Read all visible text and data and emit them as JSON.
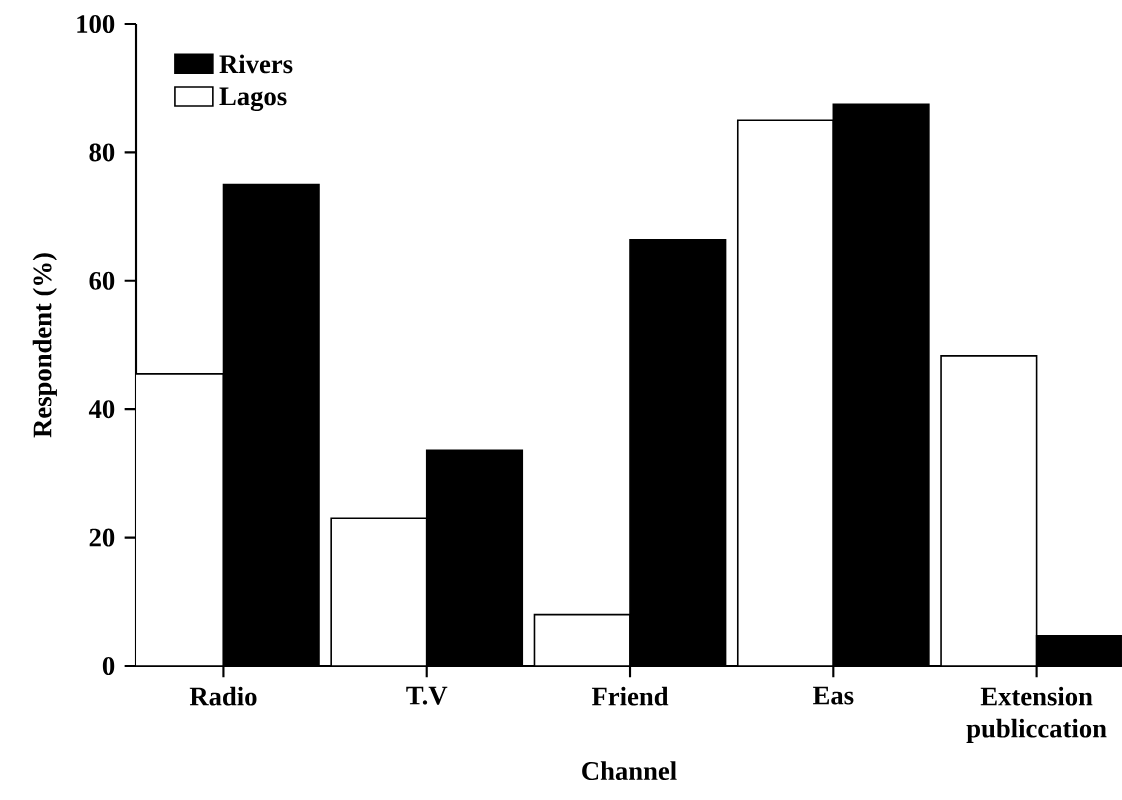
{
  "chart_data": {
    "type": "bar",
    "xlabel": "Channel",
    "ylabel": "Respondent (%)",
    "categories": [
      "Radio",
      "T.V",
      "Friend",
      "Eas",
      "Extension publiccation"
    ],
    "series": [
      {
        "name": "Lagos",
        "color": "#ffffff",
        "values": [
          45.5,
          23,
          8,
          85,
          48.3
        ]
      },
      {
        "name": "Rivers",
        "color": "#000000",
        "values": [
          75,
          33.6,
          66.4,
          87.5,
          4.7
        ]
      }
    ],
    "ylim": [
      0,
      100
    ],
    "yticks": [
      0,
      20,
      40,
      60,
      80,
      100
    ],
    "grid": false,
    "legend": "top left"
  }
}
